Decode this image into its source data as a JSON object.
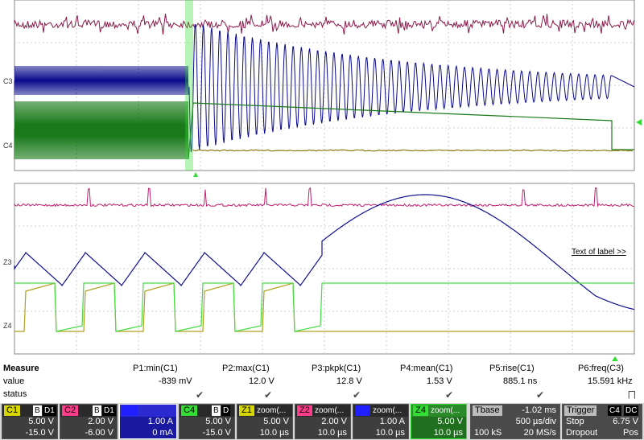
{
  "traces": {
    "top": {
      "c3_label": "C3",
      "c4_label": "C4"
    },
    "zoom": {
      "z3_label": "Z3",
      "z4_label": "Z4",
      "text_of_label": "Text of label >>"
    }
  },
  "measure": {
    "row_labels": {
      "measure": "Measure",
      "value": "value",
      "status": "status"
    },
    "params": [
      {
        "name": "P1:min(C1)",
        "value": "-839 mV",
        "status": "✔"
      },
      {
        "name": "P2:max(C1)",
        "value": "12.0 V",
        "status": "✔"
      },
      {
        "name": "P3:pkpk(C1)",
        "value": "12.8 V",
        "status": "✔"
      },
      {
        "name": "P4:mean(C1)",
        "value": "1.53 V",
        "status": "✔"
      },
      {
        "name": "P5:rise(C1)",
        "value": "885.1 ns",
        "status": "✔"
      },
      {
        "name": "P6:freq(C3)",
        "value": "15.591 kHz",
        "status": "⨅"
      }
    ]
  },
  "channels": [
    {
      "name": "C1",
      "tag1": "B",
      "tag2": "D1",
      "line1": "5.00 V",
      "line2": "-15.0 V",
      "color": "#d6d600"
    },
    {
      "name": "C2",
      "tag1": "B",
      "tag2": "D1",
      "line1": "2.00 V",
      "line2": "-6.00 V",
      "color": "#ff3d8a"
    },
    {
      "name": "C3",
      "tag1": "",
      "tag2": "",
      "line1": "1.00 A",
      "line2": "0 mA",
      "color": "#2020ff"
    },
    {
      "name": "C4",
      "tag1": "B",
      "tag2": "D",
      "line1": "5.00 V",
      "line2": "-15.0 V",
      "color": "#33dd33"
    },
    {
      "name": "Z1",
      "tag1": "zoom(...",
      "tag2": "",
      "line1": "5.00 V",
      "line2": "10.0 µs",
      "color": "#d6d600"
    },
    {
      "name": "Z2",
      "tag1": "zoom(...",
      "tag2": "",
      "line1": "2.00 V",
      "line2": "10.0 µs",
      "color": "#ff3d8a"
    },
    {
      "name": "Z3",
      "tag1": "zoom(...",
      "tag2": "",
      "line1": "1.00 A",
      "line2": "10.0 µs",
      "color": "#2020ff"
    },
    {
      "name": "Z4",
      "tag1": "zoom(...",
      "tag2": "",
      "line1": "5.00 V",
      "line2": "10.0 µs",
      "color": "#33dd33"
    }
  ],
  "timebase": {
    "name": "Tbase",
    "offset": "-1.02 ms",
    "div": "500 µs/div",
    "samples": "100 kS",
    "rate": "20 MS/s"
  },
  "trigger": {
    "name": "Trigger",
    "badge": "C4",
    "coupling": "DC",
    "mode": "Stop",
    "level": "6.75 V",
    "type": "Dropout",
    "slope": "Pos"
  },
  "colors": {
    "magenta_trace": "#8b1a4a",
    "blue_trace": "#0a0a8c",
    "green_trace": "#1a7a1a",
    "olive_trace": "#8a7a10",
    "bright_green": "#33dd33",
    "grid": "#c8c8c8"
  }
}
